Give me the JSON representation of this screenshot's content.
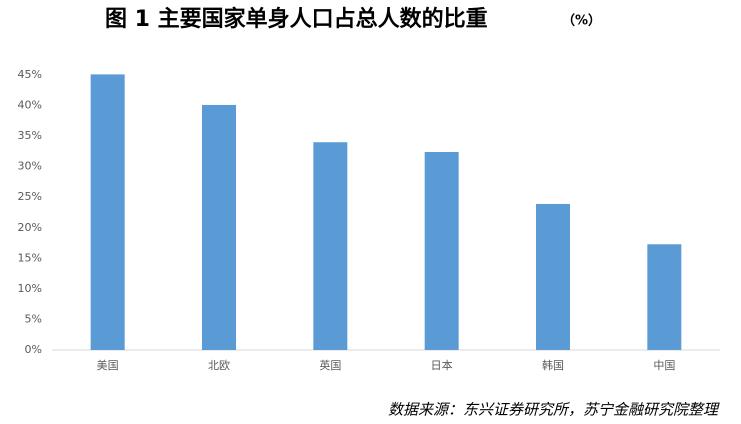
{
  "chart_data": {
    "type": "bar",
    "title": "图 1 主要国家单身人口占总人数的比重",
    "title_unit": "（%）",
    "categories": [
      "美国",
      "北欧",
      "英国",
      "日本",
      "韩国",
      "中国"
    ],
    "values": [
      45.1,
      40.1,
      34.0,
      32.4,
      23.9,
      17.3
    ],
    "color": "#5b9bd5",
    "ylim": [
      0,
      45
    ],
    "yticks": [
      {
        "value": 0,
        "label": "0%"
      },
      {
        "value": 5,
        "label": "5%"
      },
      {
        "value": 10,
        "label": "10%"
      },
      {
        "value": 15,
        "label": "15%"
      },
      {
        "value": 20,
        "label": "20%"
      },
      {
        "value": 25,
        "label": "25%"
      },
      {
        "value": 30,
        "label": "30%"
      },
      {
        "value": 35,
        "label": "35%"
      },
      {
        "value": 40,
        "label": "40%"
      },
      {
        "value": 45,
        "label": "45%"
      }
    ],
    "grid": false,
    "source": "数据来源：东兴证券研究所，苏宁金融研究院整理"
  }
}
